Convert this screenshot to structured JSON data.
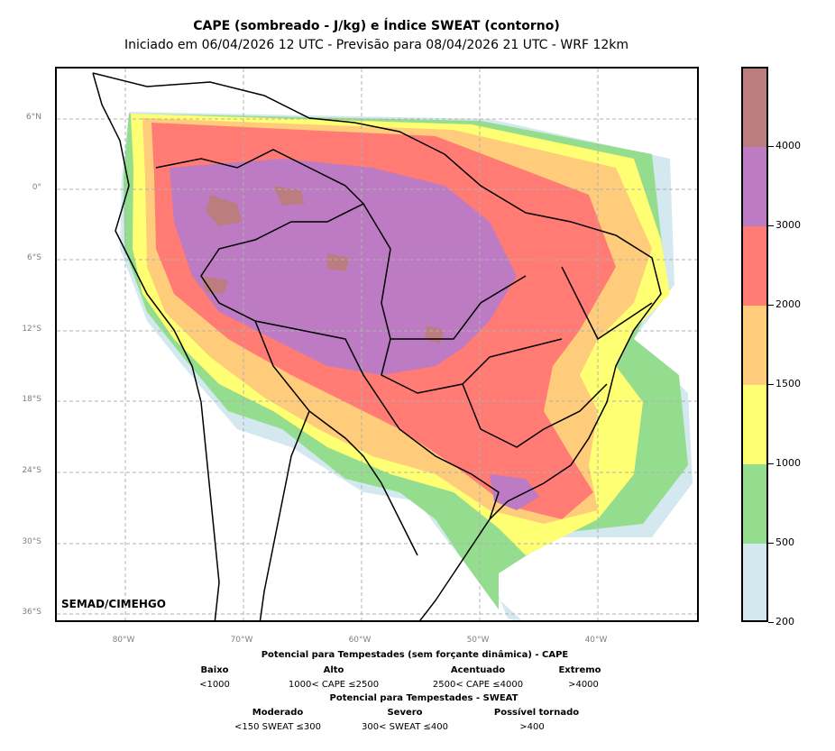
{
  "title": "CAPE (sombreado - J/kg) e Índice SWEAT (contorno)",
  "subtitle": "Iniciado em 06/04/2026 12 UTC - Previsão para 08/04/2026 21 UTC - WRF 12km",
  "credit": "SEMAD/CIMEHGO",
  "lat_labels": [
    "6°N",
    "0°",
    "6°S",
    "12°S",
    "18°S",
    "24°S",
    "30°S",
    "36°S"
  ],
  "lon_labels": [
    "80°W",
    "70°W",
    "60°W",
    "50°W",
    "40°W"
  ],
  "colorbar": {
    "ticks": [
      "200",
      "500",
      "1000",
      "1500",
      "2000",
      "3000",
      "4000"
    ],
    "colors": [
      "#d3e9ef",
      "#94dd8e",
      "#ffff73",
      "#ffcc7c",
      "#ff7b74",
      "#bd7bc4",
      "#bc7d7f"
    ]
  },
  "legend": {
    "cape_title": "Potencial para Tempestades (sem forçante dinâmica) - CAPE",
    "cape_levels": [
      {
        "label": "Baixo",
        "range": "<1000"
      },
      {
        "label": "Alto",
        "range": "1000< CAPE ≤2500"
      },
      {
        "label": "Acentuado",
        "range": "2500< CAPE ≤4000"
      },
      {
        "label": "Extremo",
        "range": ">4000"
      }
    ],
    "sweat_title": "Potencial para Tempestades - SWEAT",
    "sweat_levels": [
      {
        "label": "Moderado",
        "range": "<150 SWEAT ≤300"
      },
      {
        "label": "Severo",
        "range": "300< SWEAT ≤400"
      },
      {
        "label": "Possível tornado",
        "range": ">400"
      }
    ]
  }
}
